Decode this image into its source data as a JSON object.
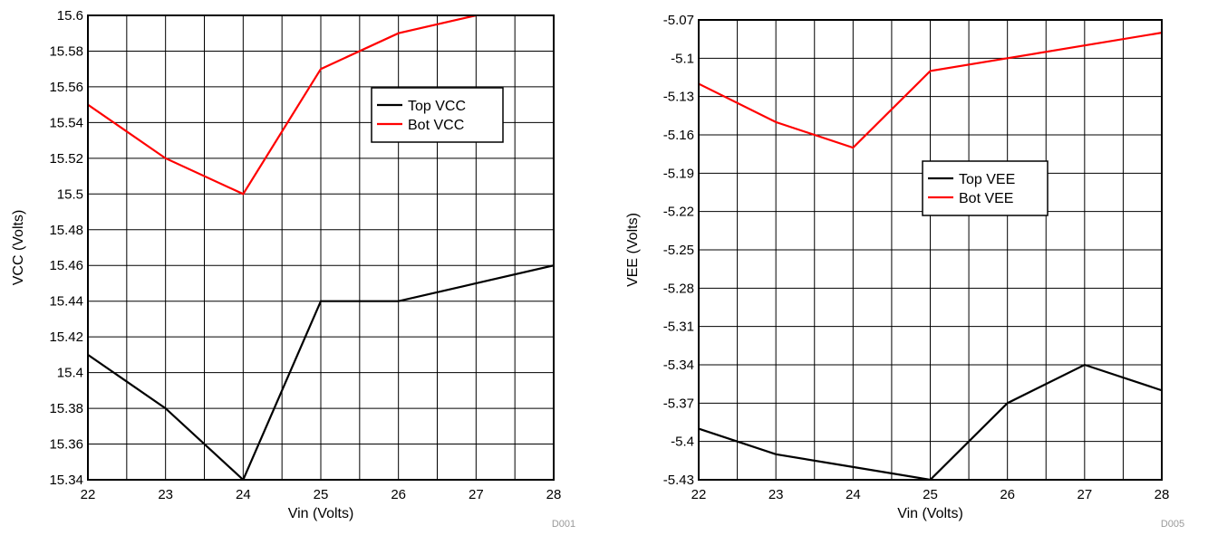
{
  "chart_data": [
    {
      "type": "line",
      "xlabel": "Vin (Volts)",
      "ylabel": "VCC (Volts)",
      "x": [
        22,
        23,
        24,
        25,
        26,
        27,
        28
      ],
      "xlim": [
        22,
        28
      ],
      "ylim": [
        15.34,
        15.6
      ],
      "x_ticks": [
        "22",
        "23",
        "24",
        "25",
        "26",
        "27",
        "28"
      ],
      "y_ticks": [
        "15.34",
        "15.36",
        "15.38",
        "15.4",
        "15.42",
        "15.44",
        "15.46",
        "15.48",
        "15.5",
        "15.52",
        "15.54",
        "15.56",
        "15.58",
        "15.6"
      ],
      "grid": true,
      "legend_position": "upper-right",
      "code": "D001",
      "series": [
        {
          "name": "Top VCC",
          "color": "#000000",
          "values": [
            15.41,
            15.38,
            15.34,
            15.44,
            15.44,
            15.45,
            15.46
          ]
        },
        {
          "name": "Bot VCC",
          "color": "#ff0000",
          "values": [
            15.55,
            15.52,
            15.5,
            15.57,
            15.59,
            15.6,
            15.61
          ]
        }
      ]
    },
    {
      "type": "line",
      "xlabel": "Vin (Volts)",
      "ylabel": "VEE (Volts)",
      "x": [
        22,
        23,
        24,
        25,
        26,
        27,
        28
      ],
      "xlim": [
        22,
        28
      ],
      "ylim": [
        -5.43,
        -5.07
      ],
      "x_ticks": [
        "22",
        "23",
        "24",
        "25",
        "26",
        "27",
        "28"
      ],
      "y_ticks": [
        "-5.43",
        "-5.4",
        "-5.37",
        "-5.34",
        "-5.31",
        "-5.28",
        "-5.25",
        "-5.22",
        "-5.19",
        "-5.16",
        "-5.13",
        "-5.1",
        "-5.07"
      ],
      "grid": true,
      "legend_position": "center",
      "code": "D005",
      "series": [
        {
          "name": "Top VEE",
          "color": "#000000",
          "values": [
            -5.39,
            -5.41,
            -5.42,
            -5.43,
            -5.37,
            -5.34,
            -5.36
          ]
        },
        {
          "name": "Bot VEE",
          "color": "#ff0000",
          "values": [
            -5.12,
            -5.15,
            -5.17,
            -5.11,
            -5.1,
            -5.09,
            -5.08
          ]
        }
      ]
    }
  ]
}
